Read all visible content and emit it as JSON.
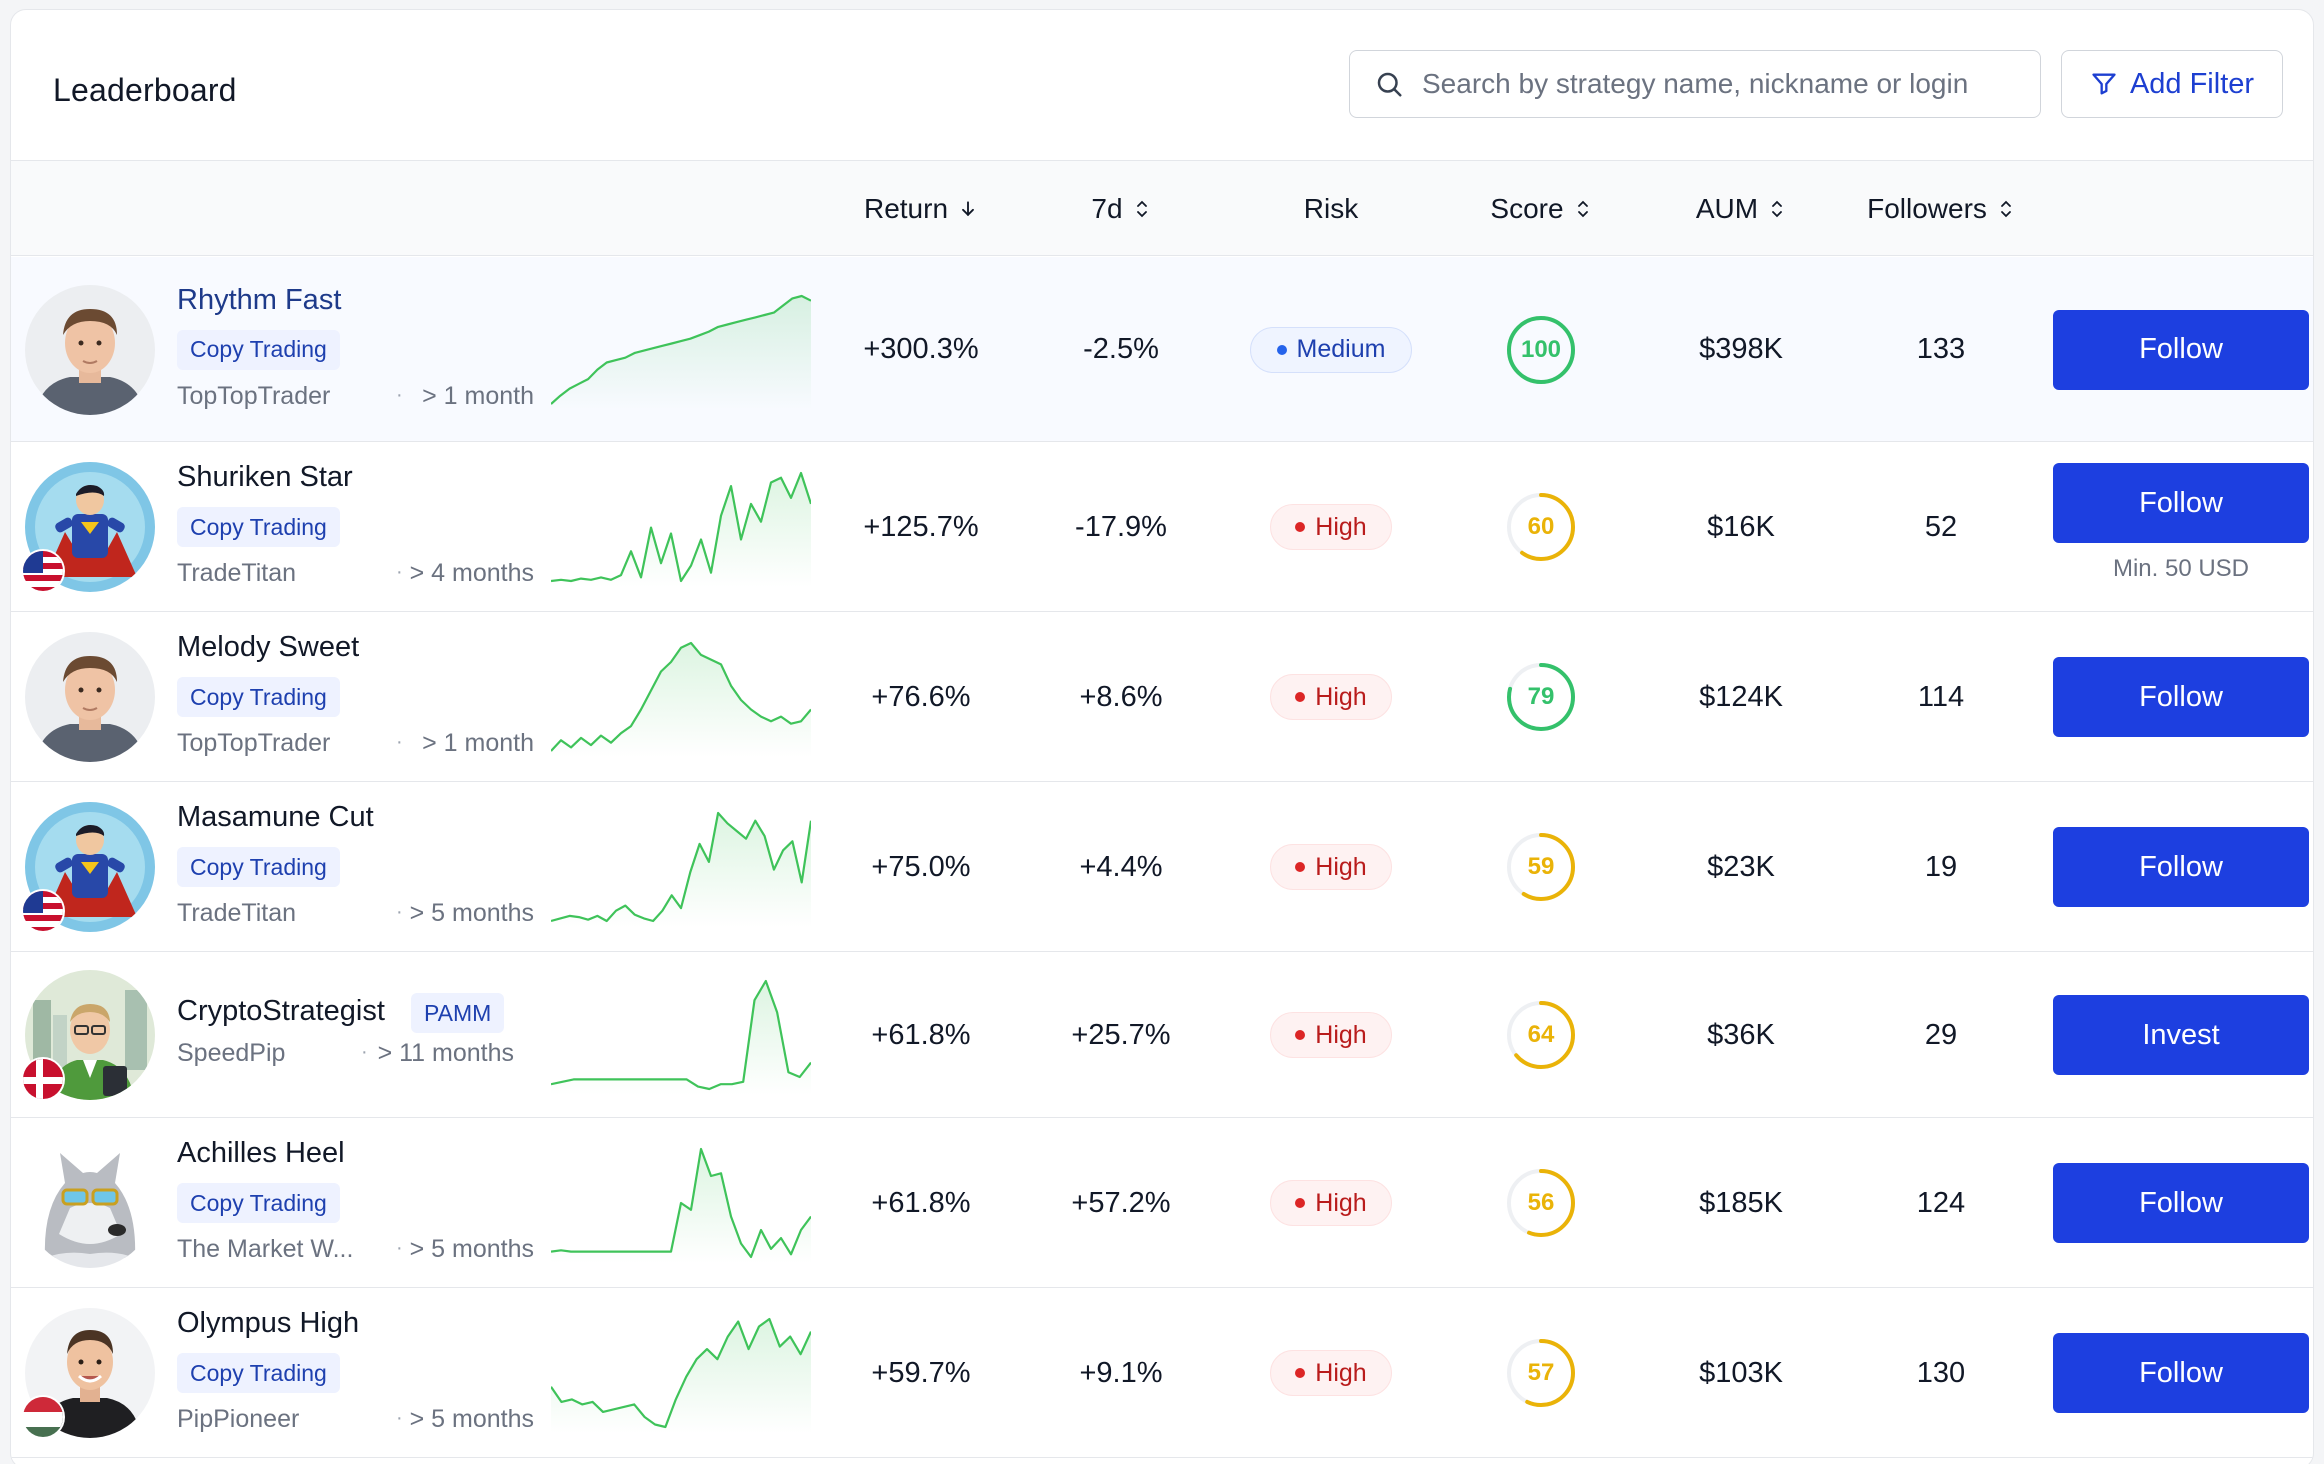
{
  "header": {
    "title": "Leaderboard",
    "search_placeholder": "Search by strategy name, nickname or login",
    "add_filter_label": "Add Filter"
  },
  "columns": {
    "return": "Return",
    "seven_day": "7d",
    "risk": "Risk",
    "score": "Score",
    "aum": "AUM",
    "followers": "Followers"
  },
  "colors": {
    "accent": "#1d3fe0",
    "spark_line": "#3fc35a",
    "score_green": "#34c16b",
    "score_yellow": "#eab308"
  },
  "rows": [
    {
      "name": "Rhythm Fast",
      "tag": "Copy Trading",
      "nick": "TopTopTrader",
      "age": "> 1 month",
      "return": "+300.3%",
      "seven_day": "-2.5%",
      "risk": "Medium",
      "score": "100",
      "score_value": 100,
      "aum": "$398K",
      "followers": "133",
      "action": "Follow",
      "note": "",
      "avatar": "male-portrait",
      "flag": "",
      "spark": [
        5,
        12,
        18,
        22,
        26,
        34,
        40,
        42,
        44,
        48,
        50,
        52,
        54,
        56,
        58,
        60,
        63,
        66,
        70,
        72,
        74,
        76,
        78,
        80,
        82,
        88,
        94,
        96,
        92
      ]
    },
    {
      "name": "Shuriken Star",
      "tag": "Copy Trading",
      "nick": "TradeTitan",
      "age": "> 4 months",
      "return": "+125.7%",
      "seven_day": "-17.9%",
      "risk": "High",
      "score": "60",
      "score_value": 60,
      "aum": "$16K",
      "followers": "52",
      "action": "Follow",
      "note": "Min. 50 USD",
      "avatar": "superhero",
      "flag": "us-flag",
      "spark": [
        5,
        6,
        5,
        7,
        6,
        8,
        6,
        10,
        30,
        8,
        50,
        20,
        45,
        5,
        18,
        40,
        12,
        60,
        85,
        40,
        70,
        55,
        88,
        92,
        75,
        96,
        70
      ]
    },
    {
      "name": "Melody Sweet",
      "tag": "Copy Trading",
      "nick": "TopTopTrader",
      "age": "> 1 month",
      "return": "+76.6%",
      "seven_day": "+8.6%",
      "risk": "High",
      "score": "79",
      "score_value": 79,
      "aum": "$124K",
      "followers": "114",
      "action": "Follow",
      "note": "",
      "avatar": "male-portrait",
      "flag": "",
      "spark": [
        5,
        14,
        8,
        16,
        10,
        18,
        12,
        20,
        26,
        40,
        56,
        72,
        80,
        92,
        96,
        86,
        82,
        78,
        60,
        48,
        40,
        34,
        30,
        34,
        28,
        30,
        40
      ]
    },
    {
      "name": "Masamune Cut",
      "tag": "Copy Trading",
      "nick": "TradeTitan",
      "age": "> 5 months",
      "return": "+75.0%",
      "seven_day": "+4.4%",
      "risk": "High",
      "score": "59",
      "score_value": 59,
      "aum": "$23K",
      "followers": "19",
      "action": "Follow",
      "note": "",
      "avatar": "superhero",
      "flag": "us-flag",
      "spark": [
        10,
        12,
        14,
        13,
        11,
        14,
        10,
        18,
        22,
        15,
        12,
        10,
        18,
        30,
        20,
        48,
        70,
        56,
        94,
        86,
        80,
        74,
        88,
        76,
        50,
        65,
        72,
        40,
        88
      ]
    },
    {
      "name": "CryptoStrategist",
      "tag": "PAMM",
      "nick": "SpeedPip",
      "age": "> 11 months",
      "return": "+61.8%",
      "seven_day": "+25.7%",
      "risk": "High",
      "score": "64",
      "score_value": 64,
      "aum": "$36K",
      "followers": "29",
      "action": "Invest",
      "note": "",
      "avatar": "businessman",
      "flag": "dk-flag",
      "spark": [
        10,
        12,
        14,
        14,
        14,
        14,
        14,
        14,
        14,
        14,
        14,
        14,
        14,
        8,
        6,
        10,
        10,
        12,
        80,
        96,
        70,
        20,
        16,
        28
      ]
    },
    {
      "name": "Achilles Heel",
      "tag": "Copy Trading",
      "nick": "The Market W...",
      "age": "> 5 months",
      "return": "+61.8%",
      "seven_day": "+57.2%",
      "risk": "High",
      "score": "56",
      "score_value": 56,
      "aum": "$185K",
      "followers": "124",
      "action": "Follow",
      "note": "",
      "avatar": "wolf",
      "flag": "",
      "spark": [
        14,
        15,
        14,
        14,
        14,
        14,
        14,
        14,
        14,
        14,
        14,
        14,
        14,
        50,
        45,
        90,
        70,
        72,
        40,
        20,
        10,
        30,
        16,
        24,
        12,
        30,
        40
      ]
    },
    {
      "name": "Olympus High",
      "tag": "Copy Trading",
      "nick": "PipPioneer",
      "age": "> 5 months",
      "return": "+59.7%",
      "seven_day": "+9.1%",
      "risk": "High",
      "score": "57",
      "score_value": 57,
      "aum": "$103K",
      "followers": "130",
      "action": "Follow",
      "note": "",
      "avatar": "smiling-man",
      "flag": "hu-flag",
      "spark": [
        40,
        28,
        30,
        26,
        28,
        20,
        22,
        24,
        26,
        16,
        10,
        8,
        30,
        48,
        62,
        70,
        62,
        80,
        92,
        70,
        88,
        94,
        72,
        80,
        66,
        84
      ]
    }
  ]
}
